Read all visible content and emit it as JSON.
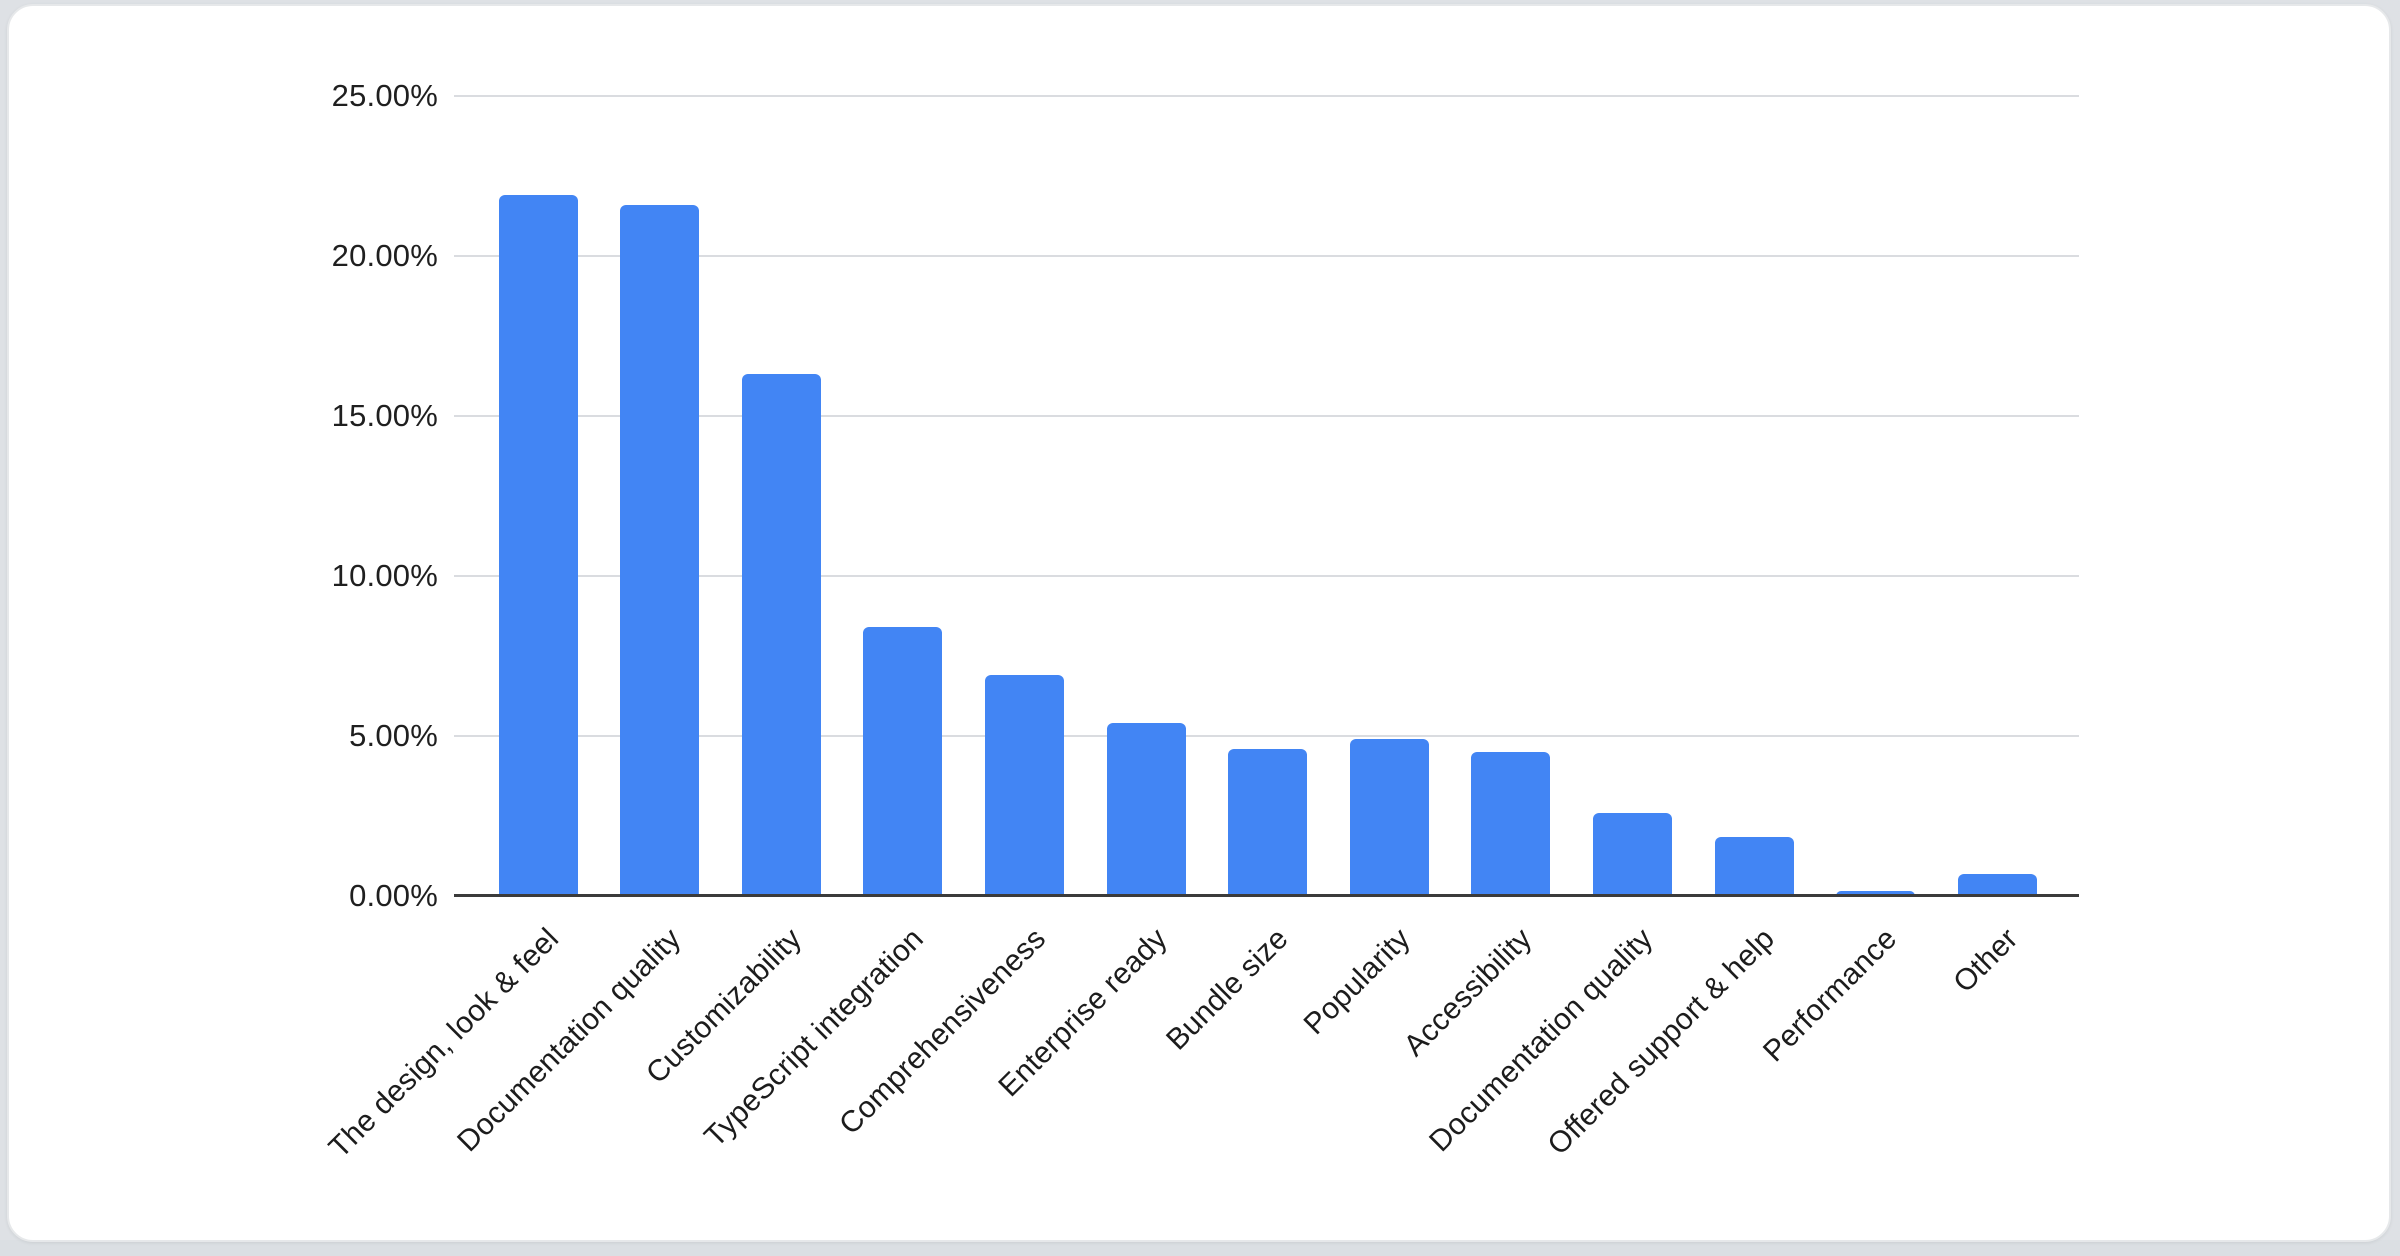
{
  "page": {
    "background_color": "#dee1e5",
    "bottom_strip_color": "#dbdfe3"
  },
  "card": {
    "background": "#ffffff",
    "border_color": "#e6e8ea"
  },
  "chart_data": {
    "type": "bar",
    "title": "",
    "xlabel": "",
    "ylabel": "",
    "categories": [
      "The design, look & feel",
      "Documentation quality",
      "Customizability",
      "TypeScript integration",
      "Comprehensiveness",
      "Enterprise ready",
      "Bundle size",
      "Popularity",
      "Accessibility",
      "Documentation quality",
      "Offered support & help",
      "Performance",
      "Other"
    ],
    "values": [
      21.9,
      21.6,
      16.3,
      8.4,
      6.9,
      5.4,
      4.6,
      4.9,
      4.5,
      2.6,
      1.85,
      0.15,
      0.7
    ],
    "unit": "%",
    "ylim": [
      0,
      25
    ],
    "y_ticks": [
      {
        "value": 25,
        "label": "25.00%"
      },
      {
        "value": 20,
        "label": "20.00%"
      },
      {
        "value": 15,
        "label": "15.00%"
      },
      {
        "value": 10,
        "label": "10.00%"
      },
      {
        "value": 5,
        "label": "5.00%"
      },
      {
        "value": 0,
        "label": "0.00%"
      }
    ],
    "grid": true,
    "legend": "none",
    "bar_color": "#4285f4",
    "gridline_color": "#dadce0",
    "axis_line_color": "#3b3b3b",
    "label_color": "#1f1f1f"
  }
}
